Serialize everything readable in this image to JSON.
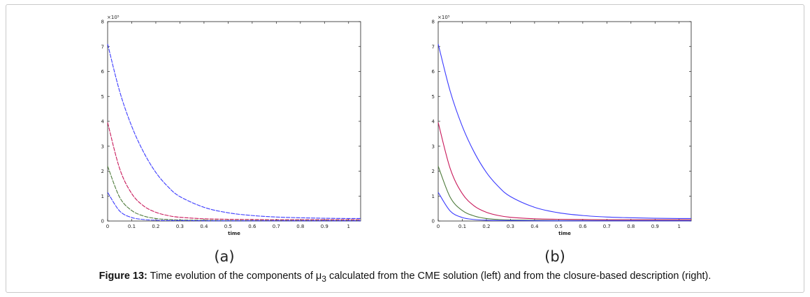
{
  "caption": {
    "label": "Figure 13:",
    "text_before": " Time evolution of the components of μ",
    "subscript": "3",
    "text_after": " calculated from the CME solution (left) and from the closure-based description (right)."
  },
  "chart_data": [
    {
      "type": "line",
      "panel_label": "(a)",
      "xlabel": "time",
      "ylabel": "",
      "y_multiplier": "×10⁵",
      "xlim": [
        0,
        1.05
      ],
      "ylim": [
        0,
        8
      ],
      "x_ticks": [
        "0",
        "0.1",
        "0.2",
        "0.3",
        "0.4",
        "0.5",
        "0.6",
        "0.7",
        "0.8",
        "0.9",
        "1"
      ],
      "y_ticks": [
        "0",
        "1",
        "2",
        "3",
        "4",
        "5",
        "6",
        "7",
        "8"
      ],
      "grid": false,
      "legend": "none",
      "series_style": "dashed",
      "series": [
        {
          "color": "#3b3bff",
          "x": [
            0,
            0.05,
            0.1,
            0.15,
            0.2,
            0.25,
            0.3,
            0.4,
            0.5,
            0.6,
            0.7,
            0.8,
            0.9,
            1.0,
            1.05
          ],
          "values": [
            7.1,
            5.2,
            3.8,
            2.75,
            1.95,
            1.38,
            0.98,
            0.55,
            0.33,
            0.22,
            0.16,
            0.13,
            0.11,
            0.1,
            0.1
          ]
        },
        {
          "color": "#c8185a",
          "x": [
            0,
            0.05,
            0.1,
            0.15,
            0.2,
            0.25,
            0.3,
            0.4,
            0.5,
            0.6,
            0.7,
            0.8,
            0.9,
            1.0,
            1.05
          ],
          "values": [
            3.95,
            2.1,
            1.1,
            0.6,
            0.35,
            0.22,
            0.15,
            0.09,
            0.07,
            0.06,
            0.05,
            0.05,
            0.05,
            0.05,
            0.05
          ]
        },
        {
          "color": "#4d7a3a",
          "x": [
            0,
            0.05,
            0.1,
            0.15,
            0.2,
            0.25,
            0.3,
            0.4,
            0.5,
            0.6,
            0.7,
            0.8,
            0.9,
            1.0,
            1.05
          ],
          "values": [
            2.2,
            0.95,
            0.42,
            0.2,
            0.1,
            0.06,
            0.04,
            0.03,
            0.02,
            0.02,
            0.02,
            0.02,
            0.02,
            0.02,
            0.02
          ]
        },
        {
          "color": "#3b3bff",
          "x": [
            0,
            0.05,
            0.1,
            0.15,
            0.2,
            0.25,
            0.3,
            0.4,
            0.5,
            0.6,
            0.7,
            0.8,
            0.9,
            1.0,
            1.05
          ],
          "values": [
            1.15,
            0.4,
            0.14,
            0.06,
            0.03,
            0.02,
            0.02,
            0.01,
            0.01,
            0.01,
            0.01,
            0.01,
            0.01,
            0.01,
            0.01
          ]
        }
      ]
    },
    {
      "type": "line",
      "panel_label": "(b)",
      "xlabel": "time",
      "ylabel": "",
      "y_multiplier": "×10⁵",
      "xlim": [
        0,
        1.05
      ],
      "ylim": [
        0,
        8
      ],
      "x_ticks": [
        "0",
        "0.1",
        "0.2",
        "0.3",
        "0.4",
        "0.5",
        "0.6",
        "0.7",
        "0.8",
        "0.9",
        "1"
      ],
      "y_ticks": [
        "0",
        "1",
        "2",
        "3",
        "4",
        "5",
        "6",
        "7",
        "8"
      ],
      "grid": false,
      "legend": "none",
      "series_style": "solid",
      "series": [
        {
          "color": "#3b3bff",
          "x": [
            0,
            0.05,
            0.1,
            0.15,
            0.2,
            0.25,
            0.3,
            0.4,
            0.5,
            0.6,
            0.7,
            0.8,
            0.9,
            1.0,
            1.05
          ],
          "values": [
            7.1,
            5.2,
            3.8,
            2.75,
            1.95,
            1.38,
            0.98,
            0.55,
            0.33,
            0.22,
            0.16,
            0.13,
            0.11,
            0.1,
            0.1
          ]
        },
        {
          "color": "#c8185a",
          "x": [
            0,
            0.05,
            0.1,
            0.15,
            0.2,
            0.25,
            0.3,
            0.4,
            0.5,
            0.6,
            0.7,
            0.8,
            0.9,
            1.0,
            1.05
          ],
          "values": [
            3.95,
            2.1,
            1.1,
            0.6,
            0.35,
            0.22,
            0.15,
            0.09,
            0.07,
            0.06,
            0.05,
            0.05,
            0.05,
            0.05,
            0.05
          ]
        },
        {
          "color": "#4d7a3a",
          "x": [
            0,
            0.05,
            0.1,
            0.15,
            0.2,
            0.25,
            0.3,
            0.4,
            0.5,
            0.6,
            0.7,
            0.8,
            0.9,
            1.0,
            1.05
          ],
          "values": [
            2.2,
            0.95,
            0.42,
            0.2,
            0.1,
            0.06,
            0.04,
            0.03,
            0.02,
            0.02,
            0.02,
            0.02,
            0.02,
            0.02,
            0.02
          ]
        },
        {
          "color": "#3b3bff",
          "x": [
            0,
            0.05,
            0.1,
            0.15,
            0.2,
            0.25,
            0.3,
            0.4,
            0.5,
            0.6,
            0.7,
            0.8,
            0.9,
            1.0,
            1.05
          ],
          "values": [
            1.15,
            0.4,
            0.14,
            0.06,
            0.03,
            0.02,
            0.02,
            0.01,
            0.01,
            0.01,
            0.01,
            0.01,
            0.01,
            0.01,
            0.01
          ]
        }
      ]
    }
  ]
}
